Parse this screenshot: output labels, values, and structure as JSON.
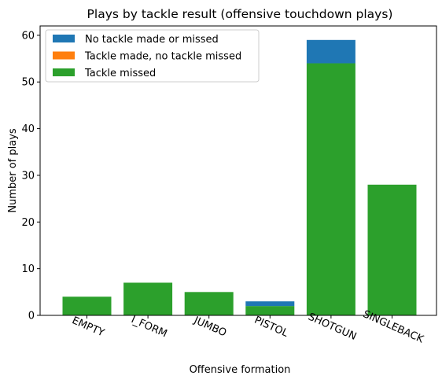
{
  "chart_data": {
    "type": "bar",
    "stacked": true,
    "title": "Plays by tackle result (offensive touchdown plays)",
    "xlabel": "Offensive formation",
    "ylabel": "Number of plays",
    "categories": [
      "EMPTY",
      "I_FORM",
      "JUMBO",
      "PISTOL",
      "SHOTGUN",
      "SINGLEBACK"
    ],
    "ylim": [
      0,
      62
    ],
    "yticks": [
      0,
      10,
      20,
      30,
      40,
      50,
      60
    ],
    "legend_position": "top-left",
    "grid": false,
    "series": [
      {
        "name": "Tackle missed",
        "color": "#2ca02c",
        "values": [
          4,
          7,
          5,
          2,
          54,
          28
        ]
      },
      {
        "name": "Tackle made, no tackle missed",
        "color": "#ff7f0e",
        "values": [
          0,
          0,
          0,
          0,
          0,
          0
        ]
      },
      {
        "name": "No tackle made or missed",
        "color": "#1f77b4",
        "values": [
          0,
          0,
          0,
          1,
          5,
          0
        ]
      }
    ],
    "legend_order": [
      "No tackle made or missed",
      "Tackle made, no tackle missed",
      "Tackle missed"
    ]
  }
}
